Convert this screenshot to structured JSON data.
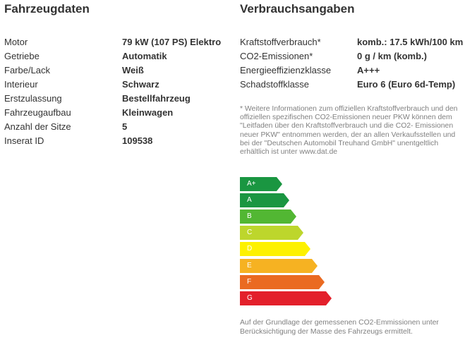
{
  "fahrzeugdaten": {
    "title": "Fahrzeugdaten",
    "rows": [
      {
        "label": "Motor",
        "value": "79 kW (107 PS) Elektro"
      },
      {
        "label": "Getriebe",
        "value": "Automatik"
      },
      {
        "label": "Farbe/Lack",
        "value": "Weiß"
      },
      {
        "label": "Interieur",
        "value": "Schwarz"
      },
      {
        "label": "Erstzulassung",
        "value": "Bestellfahrzeug"
      },
      {
        "label": "Fahrzeugaufbau",
        "value": "Kleinwagen"
      },
      {
        "label": "Anzahl der Sitze",
        "value": "5"
      },
      {
        "label": "Inserat ID",
        "value": "109538"
      }
    ]
  },
  "verbrauch": {
    "title": "Verbrauchsangaben",
    "rows": [
      {
        "label": "Kraftstoffverbrauch*",
        "value": "komb.: 17.5 kWh/100 km"
      },
      {
        "label": "CO2-Emissionen*",
        "value": "0 g / km (komb.)"
      },
      {
        "label": "Energieeffizienzklasse",
        "value": "A+++"
      },
      {
        "label": "Schadstoffklasse",
        "value": "Euro 6 (Euro 6d-Temp)"
      }
    ],
    "note": "* Weitere Informationen zum offiziellen Kraftstoffverbrauch und den offiziellen spezifischen CO2-Emissionen neuer PKW können dem \"Leitfaden über den Kraftstoffverbrauch und die CO2- Emissionen neuer PKW\" entnommen werden, der an allen Verkaufsstellen und bei der \"Deutschen Automobil Treuhand GmbH\" unentgeltlich erhältlich ist unter www.dat.de",
    "energy_labels": [
      {
        "label": "A+",
        "color": "#1a9641",
        "level": 0
      },
      {
        "label": "A",
        "color": "#1a9641",
        "level": 1
      },
      {
        "label": "B",
        "color": "#52b733",
        "level": 2
      },
      {
        "label": "C",
        "color": "#bdd62c",
        "level": 3
      },
      {
        "label": "D",
        "color": "#fdf100",
        "level": 4
      },
      {
        "label": "E",
        "color": "#f6b222",
        "level": 5
      },
      {
        "label": "F",
        "color": "#ea6a21",
        "level": 6
      },
      {
        "label": "G",
        "color": "#e3202b",
        "level": 7
      }
    ],
    "footnote": "Auf der Grundlage der gemessenen CO2-Emmissionen unter Berücksichtigung der Masse des Fahrzeugs ermittelt."
  }
}
